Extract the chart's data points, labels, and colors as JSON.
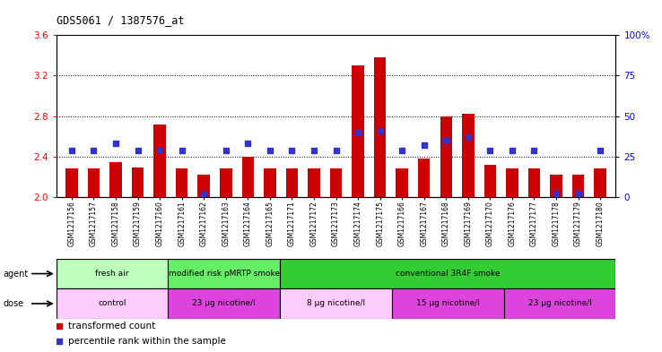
{
  "title": "GDS5061 / 1387576_at",
  "samples": [
    "GSM1217156",
    "GSM1217157",
    "GSM1217158",
    "GSM1217159",
    "GSM1217160",
    "GSM1217161",
    "GSM1217162",
    "GSM1217163",
    "GSM1217164",
    "GSM1217165",
    "GSM1217171",
    "GSM1217172",
    "GSM1217173",
    "GSM1217174",
    "GSM1217175",
    "GSM1217166",
    "GSM1217167",
    "GSM1217168",
    "GSM1217169",
    "GSM1217170",
    "GSM1217176",
    "GSM1217177",
    "GSM1217178",
    "GSM1217179",
    "GSM1217180"
  ],
  "transformed_count": [
    2.28,
    2.28,
    2.35,
    2.29,
    2.72,
    2.28,
    2.22,
    2.28,
    2.4,
    2.28,
    2.28,
    2.28,
    2.28,
    3.3,
    3.38,
    2.28,
    2.38,
    2.8,
    2.82,
    2.32,
    2.28,
    2.28,
    2.22,
    2.22,
    2.28
  ],
  "percentile_rank": [
    29,
    29,
    33,
    29,
    29,
    29,
    2,
    29,
    33,
    29,
    29,
    29,
    29,
    40,
    41,
    29,
    32,
    35,
    37,
    29,
    29,
    29,
    2,
    2,
    29
  ],
  "ylim_left": [
    2.0,
    3.6
  ],
  "ylim_right": [
    0,
    100
  ],
  "yticks_left": [
    2.0,
    2.4,
    2.8,
    3.2,
    3.6
  ],
  "yticks_right": [
    0,
    25,
    50,
    75,
    100
  ],
  "ytick_right_labels": [
    "0",
    "25",
    "50",
    "75",
    "100%"
  ],
  "bar_color": "#cc0000",
  "dot_color": "#3333cc",
  "agent_groups": [
    {
      "label": "fresh air",
      "start": 0,
      "end": 5,
      "color": "#bbffbb"
    },
    {
      "label": "modified risk pMRTP smoke",
      "start": 5,
      "end": 10,
      "color": "#66ee66"
    },
    {
      "label": "conventional 3R4F smoke",
      "start": 10,
      "end": 25,
      "color": "#33cc33"
    }
  ],
  "dose_groups": [
    {
      "label": "control",
      "start": 0,
      "end": 5,
      "color": "#ffccff"
    },
    {
      "label": "23 μg nicotine/l",
      "start": 5,
      "end": 10,
      "color": "#dd44dd"
    },
    {
      "label": "8 μg nicotine/l",
      "start": 10,
      "end": 15,
      "color": "#ffccff"
    },
    {
      "label": "15 μg nicotine/l",
      "start": 15,
      "end": 20,
      "color": "#dd44dd"
    },
    {
      "label": "23 μg nicotine/l",
      "start": 20,
      "end": 25,
      "color": "#dd44dd"
    }
  ],
  "bar_width": 0.55,
  "dot_size": 25
}
